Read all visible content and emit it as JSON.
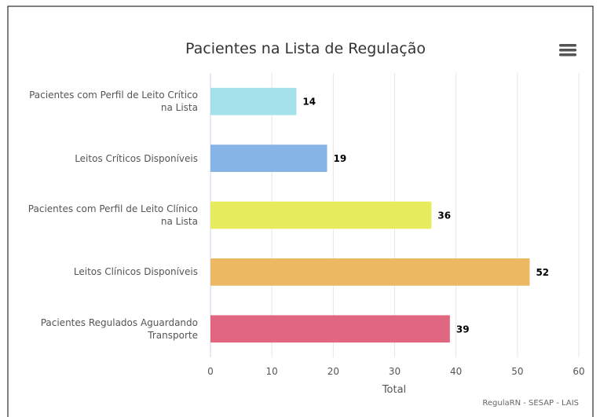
{
  "chart_data": {
    "type": "bar",
    "orientation": "horizontal",
    "title": "Pacientes na Lista de Regulação",
    "categories": [
      "Pacientes com Perfil de Leito Crítico na Lista",
      "Leitos Críticos Disponíveis",
      "Pacientes com Perfil de Leito Clínico na Lista",
      "Leitos Clínicos Disponíveis",
      "Pacientes Regulados Aguardando Transporte"
    ],
    "values": [
      14,
      19,
      36,
      52,
      39
    ],
    "colors": [
      "#a4e1ea",
      "#87b4e6",
      "#e7ec5f",
      "#ecb862",
      "#e0677f"
    ],
    "xlabel": "Total",
    "xlim": [
      0,
      60
    ],
    "xticks": [
      0,
      10,
      20,
      30,
      40,
      50,
      60
    ],
    "grid": true,
    "credits": "RegulaRN - SESAP - LAIS"
  }
}
